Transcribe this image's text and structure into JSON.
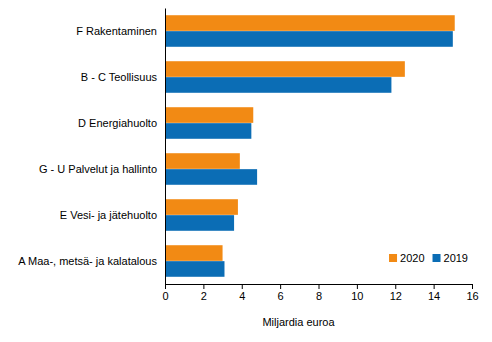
{
  "chart_data": {
    "type": "bar",
    "orientation": "horizontal",
    "categories": [
      "F Rakentaminen",
      "B - C Teollisuus",
      "D Energiahuolto",
      "G - U Palvelut ja hallinto",
      "E Vesi- ja jätehuolto",
      "A Maa-, metsä- ja kalatalous"
    ],
    "series": [
      {
        "name": "2020",
        "color": "#f28a14",
        "values": [
          15.1,
          12.5,
          4.6,
          3.9,
          3.8,
          3.0
        ]
      },
      {
        "name": "2019",
        "color": "#0b6db5",
        "values": [
          15.0,
          11.8,
          4.5,
          4.8,
          3.6,
          3.1
        ]
      }
    ],
    "x_label": "Miljardia euroa",
    "xlim": [
      0,
      16
    ],
    "xticks": [
      0,
      2,
      4,
      6,
      8,
      10,
      12,
      14,
      16
    ],
    "grid": false,
    "legend": "lower right"
  }
}
